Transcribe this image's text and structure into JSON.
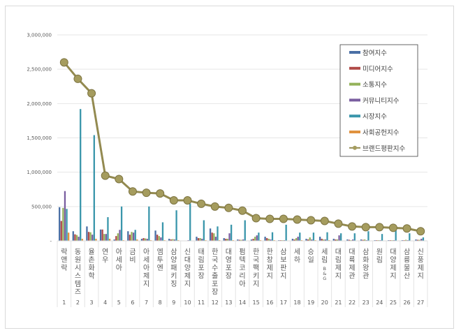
{
  "chart_data": {
    "type": "bar",
    "title": "",
    "xlabel": "",
    "ylabel": "",
    "ylim": [
      0,
      3000000
    ],
    "yticks": [
      0,
      500000,
      1000000,
      1500000,
      2000000,
      2500000,
      3000000
    ],
    "ytick_labels": [
      "-",
      "500,000",
      "1,000,000",
      "1,500,000",
      "2,000,000",
      "2,500,000",
      "3,000,000"
    ],
    "grid": true,
    "legend_position": "top-right",
    "ranks": [
      "1",
      "2",
      "3",
      "4",
      "5",
      "6",
      "7",
      "8",
      "9",
      "10",
      "11",
      "12",
      "13",
      "14",
      "15",
      "16",
      "17",
      "18",
      "19",
      "20",
      "21",
      "22",
      "23",
      "24",
      "25",
      "26",
      "27"
    ],
    "categories": [
      "락앤락",
      "동원시스템즈",
      "율촌화학",
      "연우",
      "아세아",
      "금비",
      "아세아제지",
      "엠투엔",
      "삼양패키징",
      "신대양제지",
      "태림포장",
      "한국수출포장",
      "대영포장",
      "펌텍코리아",
      "한국팩키지",
      "한창제지",
      "삼보판지",
      "세하",
      "승일",
      "세림B&G",
      "대림제지",
      "대륙제관",
      "삼화왕관",
      "원림",
      "대양제지",
      "삼륭물산",
      "신풍제지"
    ],
    "series": [
      {
        "name": "참여지수",
        "kind": "bar",
        "color": "#4a6fa5",
        "values": [
          490000,
          140000,
          210000,
          165000,
          20000,
          140000,
          30000,
          150000,
          30000,
          5000,
          60000,
          180000,
          40000,
          20000,
          20000,
          60000,
          10000,
          30000,
          30000,
          60000,
          30000,
          20000,
          20000,
          10000,
          10000,
          10000,
          20000
        ]
      },
      {
        "name": "미디어지수",
        "kind": "bar",
        "color": "#b04a48",
        "values": [
          290000,
          95000,
          130000,
          165000,
          70000,
          90000,
          40000,
          90000,
          20000,
          5000,
          40000,
          120000,
          30000,
          15000,
          30000,
          40000,
          10000,
          20000,
          20000,
          30000,
          20000,
          15000,
          15000,
          10000,
          10000,
          10000,
          15000
        ]
      },
      {
        "name": "소통지수",
        "kind": "bar",
        "color": "#94b25a",
        "values": [
          480000,
          85000,
          125000,
          100000,
          110000,
          130000,
          35000,
          70000,
          25000,
          5000,
          40000,
          110000,
          30000,
          15000,
          60000,
          30000,
          10000,
          40000,
          50000,
          20000,
          20000,
          10000,
          20000,
          10000,
          10000,
          15000,
          15000
        ]
      },
      {
        "name": "커뮤니티지수",
        "kind": "bar",
        "color": "#7a5ea0",
        "values": [
          725000,
          60000,
          90000,
          100000,
          160000,
          120000,
          30000,
          50000,
          20000,
          10000,
          30000,
          60000,
          110000,
          20000,
          80000,
          20000,
          10000,
          60000,
          20000,
          20000,
          80000,
          20000,
          10000,
          10000,
          10000,
          10000,
          30000
        ]
      },
      {
        "name": "시장지수",
        "kind": "bar",
        "color": "#3a96ab",
        "values": [
          465000,
          1920000,
          1540000,
          345000,
          500000,
          160000,
          500000,
          270000,
          445000,
          545000,
          300000,
          210000,
          235000,
          300000,
          120000,
          125000,
          235000,
          120000,
          120000,
          125000,
          110000,
          110000,
          140000,
          100000,
          160000,
          110000,
          50000
        ]
      },
      {
        "name": "사회공헌지수",
        "kind": "bar",
        "color": "#e0923f",
        "values": [
          120000,
          30000,
          30000,
          30000,
          10000,
          20000,
          10000,
          10000,
          10000,
          5000,
          10000,
          10000,
          10000,
          5000,
          10000,
          10000,
          5000,
          10000,
          10000,
          10000,
          5000,
          5000,
          5000,
          5000,
          5000,
          5000,
          5000
        ]
      },
      {
        "name": "브랜드평판지수",
        "kind": "line",
        "color": "#938a50",
        "values": [
          2600000,
          2360000,
          2150000,
          950000,
          900000,
          720000,
          700000,
          690000,
          590000,
          590000,
          540000,
          500000,
          480000,
          440000,
          330000,
          320000,
          320000,
          310000,
          300000,
          290000,
          250000,
          210000,
          200000,
          200000,
          190000,
          180000,
          140000
        ]
      }
    ]
  }
}
